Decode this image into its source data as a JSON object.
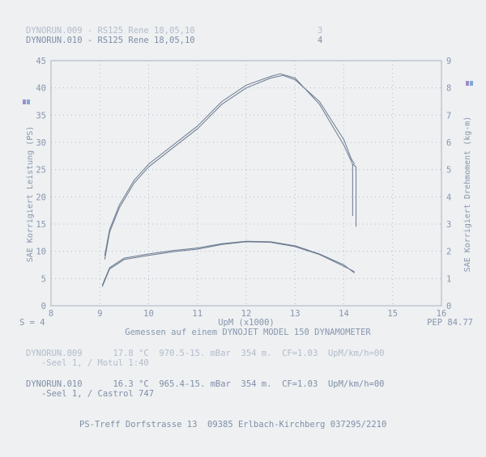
{
  "header": {
    "run1": {
      "label": "DYNORUN.009 - RS125 Rene 18,05,10",
      "index": "3"
    },
    "run2": {
      "label": "DYNORUN.010 - RS125 Rene 18,05,10",
      "index": "4"
    }
  },
  "footer": {
    "run1_line1": "DYNORUN.009      17.8 °C  970.5-15. mBar  354 m.  CF=1.03  UpM/km/h=00",
    "run1_line2": "   -Seel 1, / Motul 1:40",
    "run2_line1": "DYNORUN.010      16.3 °C  965.4-15. mBar  354 m.  CF=1.03  UpM/km/h=00",
    "run2_line2": "   -Seel 1, / Castrol 747",
    "address": "PS-Treff Dorfstrasse 13  09385 Erlbach-Kirchberg 037295/2210"
  },
  "colors": {
    "background": "#eef0f2",
    "ink": "#7f8fa6",
    "curve": "#6b7a8f",
    "grid": "#a9b3c2",
    "legend_a": "#9e8ec9",
    "legend_b": "#7fa7d8"
  },
  "chart_data": {
    "type": "line",
    "xlabel": "UpM (x1000)",
    "ylabel_left": "SAE Korrigiert Leistung (PS)",
    "ylabel_right": "SAE Korrigiert Drehmoment (kg-m)",
    "bottom_left": "S = 4",
    "bottom_right": "PEP 84.77",
    "caption": "Gemessen auf einem DYNOJET MODEL 150 DYNAMOMETER",
    "x_ticks": [
      "8",
      "9",
      "10",
      "11",
      "12",
      "13",
      "14",
      "15",
      "16"
    ],
    "y_left_ticks": [
      "0",
      "5",
      "10",
      "15",
      "20",
      "25",
      "30",
      "35",
      "40",
      "45"
    ],
    "y_right_ticks": [
      "0",
      "1",
      "2",
      "3",
      "4",
      "5",
      "6",
      "7",
      "8",
      "9"
    ],
    "xlim": [
      8,
      16
    ],
    "ylim_left": [
      0,
      45
    ],
    "ylim_right": [
      0,
      9
    ],
    "grid": "dotted",
    "series": [
      {
        "axis": "left",
        "x": [
          9.1,
          9.2,
          9.4,
          9.7,
          10.0,
          10.5,
          11.0,
          11.5,
          12.0,
          12.5,
          12.75,
          13.0,
          13.5,
          14.0,
          14.15,
          14.22
        ],
        "y": [
          8.5,
          13.5,
          18.0,
          22.5,
          25.5,
          29.0,
          32.5,
          37.0,
          40.0,
          41.8,
          42.3,
          41.5,
          37.5,
          30.5,
          27.0,
          26.0
        ]
      },
      {
        "axis": "left",
        "x": [
          9.1,
          9.2,
          9.4,
          9.7,
          10.0,
          10.5,
          11.0,
          11.5,
          12.0,
          12.5,
          12.7,
          13.0,
          13.5,
          14.0,
          14.18,
          14.25
        ],
        "y": [
          9.2,
          14.0,
          18.5,
          23.0,
          26.0,
          29.5,
          33.0,
          37.5,
          40.5,
          42.1,
          42.6,
          41.8,
          37.0,
          29.5,
          26.0,
          25.5
        ]
      },
      {
        "axis": "right",
        "x": [
          9.05,
          9.2,
          9.5,
          10.0,
          10.5,
          11.0,
          11.5,
          12.0,
          12.5,
          13.0,
          13.5,
          14.0,
          14.22
        ],
        "y": [
          0.7,
          1.35,
          1.7,
          1.85,
          1.98,
          2.08,
          2.25,
          2.35,
          2.33,
          2.17,
          1.88,
          1.45,
          1.25
        ]
      },
      {
        "axis": "right",
        "x": [
          9.05,
          9.2,
          9.5,
          10.0,
          10.5,
          11.0,
          11.5,
          12.0,
          12.5,
          13.0,
          13.5,
          14.0,
          14.22
        ],
        "y": [
          0.75,
          1.4,
          1.75,
          1.9,
          2.03,
          2.12,
          2.28,
          2.37,
          2.35,
          2.2,
          1.9,
          1.5,
          1.2
        ]
      }
    ]
  }
}
